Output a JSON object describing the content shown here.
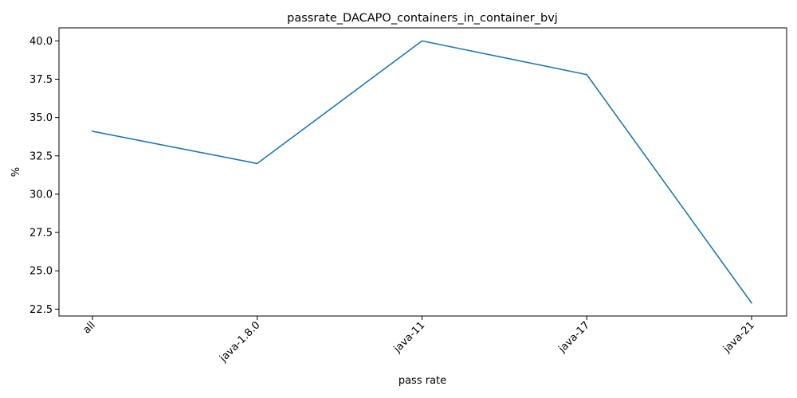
{
  "chart_data": {
    "type": "line",
    "title": "passrate_DACAPO_containers_in_container_bvj",
    "xlabel": "pass rate",
    "ylabel": "%",
    "categories": [
      "all",
      "java-1.8.0",
      "java-11",
      "java-17",
      "java-21"
    ],
    "series": [
      {
        "values": [
          34.1,
          32.0,
          40.0,
          37.8,
          22.9
        ],
        "color": "#1f77b4"
      }
    ],
    "yticks": [
      "22.5",
      "25.0",
      "27.5",
      "30.0",
      "32.5",
      "35.0",
      "37.5",
      "40.0"
    ],
    "ylim": [
      22.05,
      40.85
    ],
    "grid": false,
    "legend": "none"
  }
}
